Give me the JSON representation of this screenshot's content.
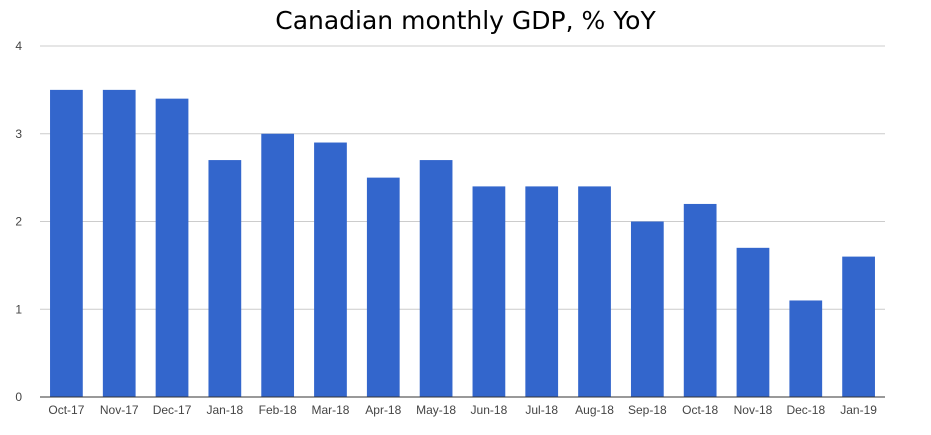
{
  "chart_data": {
    "type": "bar",
    "title": "Canadian monthly GDP, % YoY",
    "xlabel": "",
    "ylabel": "",
    "categories": [
      "Oct-17",
      "Nov-17",
      "Dec-17",
      "Jan-18",
      "Feb-18",
      "Mar-18",
      "Apr-18",
      "May-18",
      "Jun-18",
      "Jul-18",
      "Aug-18",
      "Sep-18",
      "Oct-18",
      "Nov-18",
      "Dec-18",
      "Jan-19"
    ],
    "values": [
      3.5,
      3.5,
      3.4,
      2.7,
      3.0,
      2.9,
      2.5,
      2.7,
      2.4,
      2.4,
      2.4,
      2.0,
      2.2,
      1.7,
      1.1,
      1.6
    ],
    "ylim": [
      0,
      4
    ],
    "yticks": [
      "0",
      "1",
      "2",
      "3",
      "4"
    ],
    "grid": true,
    "legend": "none",
    "colors": {
      "bar": "#3366cc",
      "grid": "#cccccc",
      "axis": "#333333",
      "text": "#444444"
    }
  }
}
